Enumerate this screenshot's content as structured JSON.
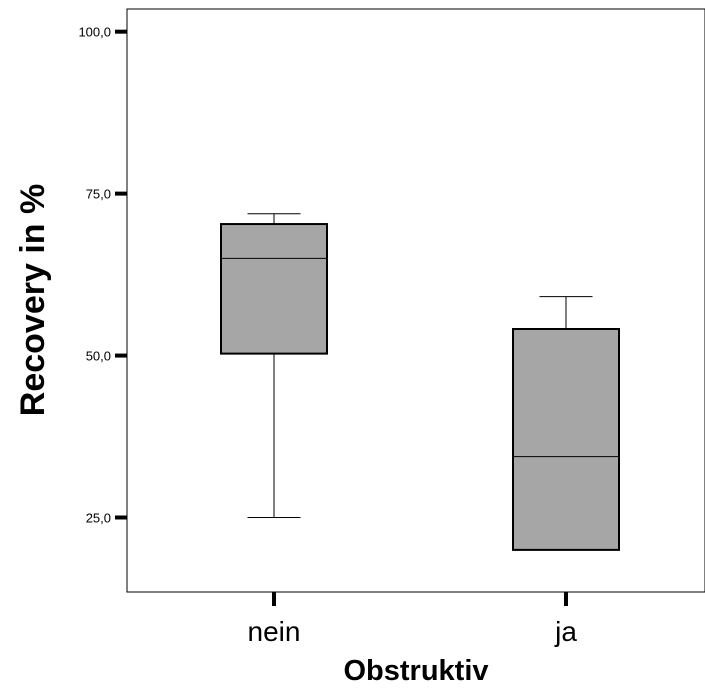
{
  "chart_data": {
    "type": "boxplot",
    "xlabel": "Obstruktiv",
    "ylabel": "Recovery in %",
    "ylim": [
      13.5,
      103.5
    ],
    "yticks": [
      {
        "value": 100,
        "label": "100,0"
      },
      {
        "value": 75,
        "label": "75,0"
      },
      {
        "value": 50,
        "label": "50,0"
      },
      {
        "value": 25,
        "label": "25,0"
      }
    ],
    "categories": [
      "nein",
      "ja"
    ],
    "boxes": [
      {
        "category": "nein",
        "whisker_low": 25.0,
        "q1": 50.3,
        "median": 65.0,
        "q3": 70.3,
        "whisker_high": 71.9
      },
      {
        "category": "ja",
        "whisker_low": 20.0,
        "q1": 20.0,
        "median": 34.4,
        "q3": 54.1,
        "whisker_high": 59.1
      }
    ],
    "grid": false,
    "colors": {
      "box_fill": "#a6a6a6",
      "stroke": "#000000"
    }
  }
}
